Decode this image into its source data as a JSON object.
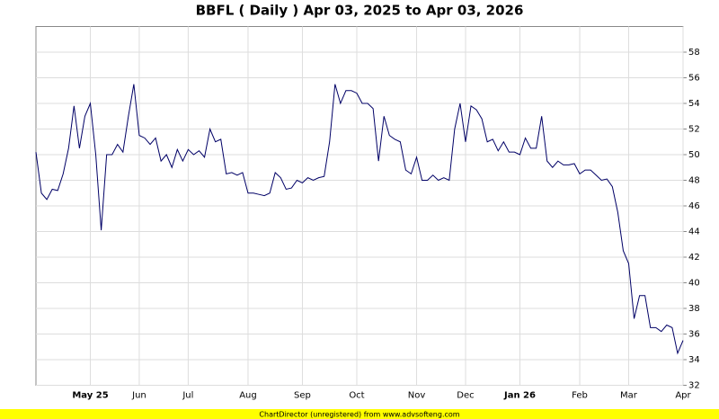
{
  "chart_data": {
    "type": "line",
    "title": "BBFL ( Daily ) Apr 03, 2025 to Apr 03, 2026",
    "footer": "ChartDirector (unregistered) from www.advsofteng.com",
    "categories": [
      null,
      null,
      null,
      null,
      null,
      null,
      null,
      null,
      null,
      null,
      "May 25",
      null,
      null,
      null,
      null,
      null,
      null,
      null,
      null,
      "Jun",
      null,
      null,
      null,
      null,
      null,
      null,
      null,
      null,
      "Jul",
      null,
      null,
      null,
      null,
      null,
      null,
      null,
      null,
      null,
      null,
      "Aug",
      null,
      null,
      null,
      null,
      null,
      null,
      null,
      null,
      null,
      "Sep",
      null,
      null,
      null,
      null,
      null,
      null,
      null,
      null,
      null,
      "Oct",
      null,
      null,
      null,
      null,
      null,
      null,
      null,
      null,
      null,
      null,
      "Nov",
      null,
      null,
      null,
      null,
      null,
      null,
      null,
      null,
      "Dec",
      null,
      null,
      null,
      null,
      null,
      null,
      null,
      null,
      null,
      "Jan 26",
      null,
      null,
      null,
      null,
      null,
      null,
      null,
      null,
      null,
      null,
      "Feb",
      null,
      null,
      null,
      null,
      null,
      null,
      null,
      null,
      "Mar",
      null,
      null,
      null,
      null,
      null,
      null,
      null,
      null,
      null,
      "Apr"
    ],
    "values": [
      50.2,
      47,
      46.5,
      47.3,
      47.2,
      48.5,
      50.5,
      53.8,
      50.5,
      53,
      54,
      50,
      44.1,
      50,
      50,
      50.8,
      50.2,
      53,
      55.5,
      51.5,
      51.3,
      50.8,
      51.3,
      49.5,
      50,
      49,
      50.4,
      49.5,
      50.4,
      50,
      50.3,
      49.8,
      52,
      51,
      51.2,
      48.5,
      48.6,
      48.4,
      48.6,
      47,
      47,
      46.9,
      46.8,
      47,
      48.6,
      48.2,
      47.3,
      47.4,
      48,
      47.8,
      48.2,
      48,
      48.2,
      48.3,
      51,
      55.5,
      54,
      55,
      55,
      54.8,
      54,
      54,
      53.6,
      49.5,
      53,
      51.5,
      51.2,
      51,
      48.8,
      48.5,
      49.8,
      48,
      48,
      48.4,
      48,
      48.2,
      48,
      52,
      54,
      51,
      53.8,
      53.5,
      52.8,
      51,
      51.2,
      50.3,
      51,
      50.2,
      50.2,
      50,
      51.3,
      50.5,
      50.5,
      53,
      49.5,
      49,
      49.5,
      49.2,
      49.2,
      49.3,
      48.5,
      48.8,
      48.8,
      48.4,
      48,
      48.1,
      47.5,
      45.5,
      42.5,
      41.5,
      37.2,
      39,
      39,
      36.5,
      36.5,
      36.2,
      36.7,
      36.5,
      34.5,
      35.5
    ],
    "color": "#000066",
    "ylim": [
      32,
      60
    ],
    "yticks": [
      32,
      34,
      36,
      38,
      40,
      42,
      44,
      46,
      48,
      50,
      52,
      54,
      56,
      58
    ],
    "grid": true
  }
}
